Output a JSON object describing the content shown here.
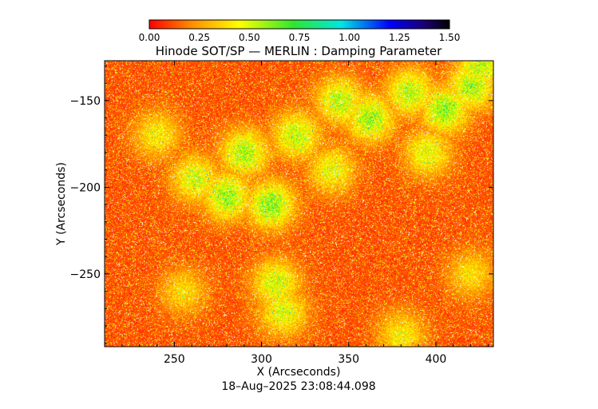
{
  "chart_data": {
    "type": "heatmap",
    "title": "Hinode SOT/SP — MERLIN : Damping Parameter",
    "xlabel": "X (Arcseconds)",
    "ylabel": "Y (Arcseconds)",
    "timestamp": "18–Aug–2025 23:08:44.098",
    "xlim": [
      210,
      433
    ],
    "ylim": [
      -292,
      -127
    ],
    "x_ticks": [
      250,
      300,
      350,
      400
    ],
    "x_tick_labels": [
      "250",
      "300",
      "350",
      "400"
    ],
    "y_ticks": [
      -150,
      -200,
      -250
    ],
    "y_tick_labels": [
      "−150",
      "−200",
      "−250"
    ],
    "colorbar": {
      "min": 0.0,
      "max": 1.5,
      "ticks": [
        0.0,
        0.25,
        0.5,
        0.75,
        1.0,
        1.25,
        1.5
      ],
      "tick_labels": [
        "0.00",
        "0.25",
        "0.50",
        "0.75",
        "1.00",
        "1.25",
        "1.50"
      ],
      "colors": [
        "#ff0000",
        "#ff8c00",
        "#ffff00",
        "#2ee82e",
        "#00e5e5",
        "#0000ff",
        "#1a0070",
        "#000000"
      ]
    },
    "base_value": 0.12,
    "regions": [
      {
        "name": "patch",
        "x": 290,
        "y": -180,
        "value": 0.62
      },
      {
        "name": "patch",
        "x": 280,
        "y": -205,
        "value": 0.65
      },
      {
        "name": "patch",
        "x": 305,
        "y": -210,
        "value": 0.68
      },
      {
        "name": "patch",
        "x": 262,
        "y": -195,
        "value": 0.55
      },
      {
        "name": "patch",
        "x": 320,
        "y": -170,
        "value": 0.58
      },
      {
        "name": "patch",
        "x": 345,
        "y": -150,
        "value": 0.6
      },
      {
        "name": "patch",
        "x": 362,
        "y": -160,
        "value": 0.64
      },
      {
        "name": "patch",
        "x": 385,
        "y": -145,
        "value": 0.6
      },
      {
        "name": "patch",
        "x": 405,
        "y": -155,
        "value": 0.66
      },
      {
        "name": "patch",
        "x": 420,
        "y": -142,
        "value": 0.62
      },
      {
        "name": "patch",
        "x": 425,
        "y": -130,
        "value": 0.58
      },
      {
        "name": "patch",
        "x": 340,
        "y": -190,
        "value": 0.5
      },
      {
        "name": "patch",
        "x": 395,
        "y": -180,
        "value": 0.52
      },
      {
        "name": "patch",
        "x": 308,
        "y": -255,
        "value": 0.55
      },
      {
        "name": "patch",
        "x": 312,
        "y": -272,
        "value": 0.52
      },
      {
        "name": "patch",
        "x": 240,
        "y": -170,
        "value": 0.45
      },
      {
        "name": "patch",
        "x": 255,
        "y": -260,
        "value": 0.4
      },
      {
        "name": "patch",
        "x": 380,
        "y": -285,
        "value": 0.45
      },
      {
        "name": "patch",
        "x": 420,
        "y": -250,
        "value": 0.4
      }
    ]
  }
}
